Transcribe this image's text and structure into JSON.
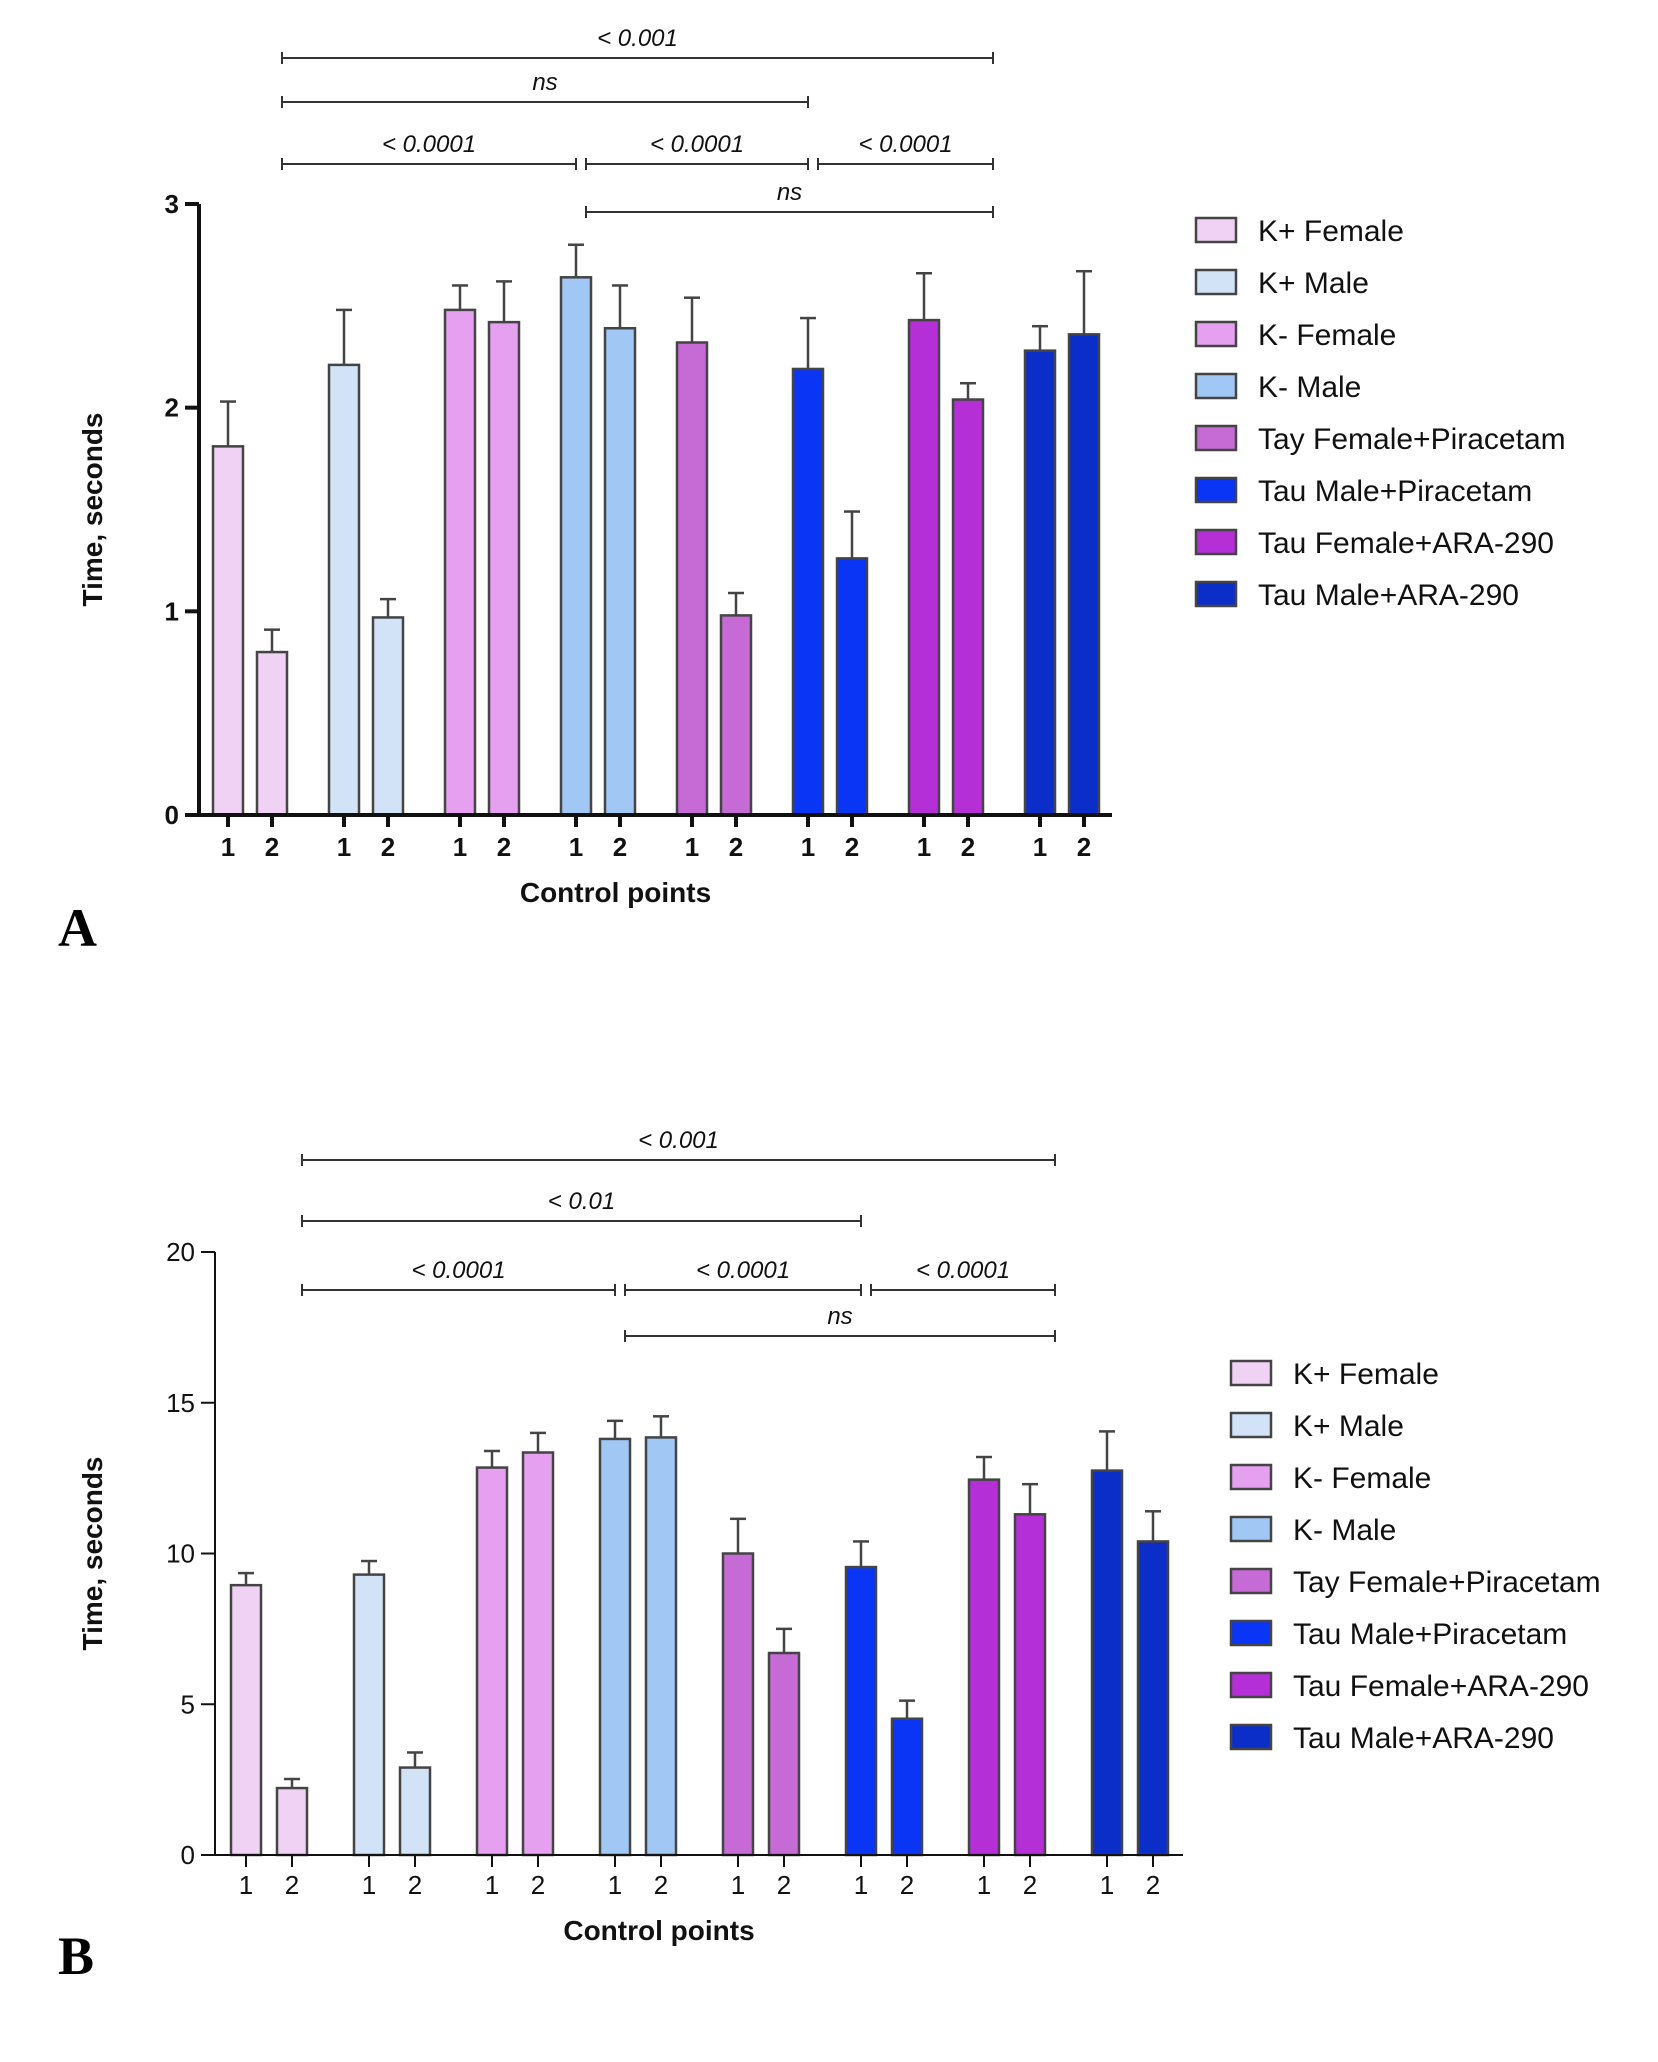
{
  "colors": {
    "K+ Female": "#f0d2f4",
    "K+ Male": "#d2e3f8",
    "K- Female": "#e5a0f0",
    "K- Male": "#a1c8f4",
    "Tay Female+Piracetam": "#c66ad6",
    "Tau Male+Piracetam": "#0a35f5",
    "Tau Female+ARA-290": "#b52fd6",
    "Tau Male+ARA-290": "#0c2ec8"
  },
  "chart_data": [
    {
      "panel": "A",
      "type": "bar",
      "xlabel": "Control points",
      "ylabel": "Time, seconds",
      "ylim": [
        0,
        3
      ],
      "yticks": [
        0,
        1,
        2,
        3
      ],
      "tick_bold": true,
      "categories": [
        "1",
        "2"
      ],
      "legend": "right",
      "series": [
        {
          "name": "K+ Female",
          "values": [
            1.81,
            0.8
          ],
          "errors": [
            0.22,
            0.11
          ]
        },
        {
          "name": "K+ Male",
          "values": [
            2.21,
            0.97
          ],
          "errors": [
            0.27,
            0.09
          ]
        },
        {
          "name": "K- Female",
          "values": [
            2.48,
            2.42
          ],
          "errors": [
            0.12,
            0.2
          ]
        },
        {
          "name": "K- Male",
          "values": [
            2.64,
            2.39
          ],
          "errors": [
            0.16,
            0.21
          ]
        },
        {
          "name": "Tay Female+Piracetam",
          "values": [
            2.32,
            0.98
          ],
          "errors": [
            0.22,
            0.11
          ]
        },
        {
          "name": "Tau Male+Piracetam",
          "values": [
            2.19,
            1.26
          ],
          "errors": [
            0.25,
            0.23
          ]
        },
        {
          "name": "Tau Female+ARA-290",
          "values": [
            2.43,
            2.04
          ],
          "errors": [
            0.23,
            0.08
          ]
        },
        {
          "name": "Tau Male+ARA-290",
          "values": [
            2.28,
            2.36
          ],
          "errors": [
            0.12,
            0.31
          ]
        }
      ],
      "comparisons": [
        {
          "label": "< 0.001",
          "from_group": 0,
          "to_group": 7,
          "level": 4
        },
        {
          "label": "ns",
          "from_group": 0,
          "to_group": 5,
          "level": 3
        },
        {
          "label": "< 0.0001",
          "from_group": 0,
          "to_group": 3,
          "level": 2
        },
        {
          "label": "< 0.0001",
          "from_group": 3,
          "to_group": 5,
          "level": 2
        },
        {
          "label": "< 0.0001",
          "from_group": 5,
          "to_group": 7,
          "level": 2
        },
        {
          "label": "ns",
          "from_group": 3,
          "to_group": 7,
          "level": 1
        }
      ]
    },
    {
      "panel": "B",
      "type": "bar",
      "xlabel": "Control points",
      "ylabel": "Time, seconds",
      "ylim": [
        0,
        20
      ],
      "yticks": [
        0,
        5,
        10,
        15,
        20
      ],
      "tick_bold": false,
      "categories": [
        "1",
        "2"
      ],
      "legend": "right",
      "series": [
        {
          "name": "K+ Female",
          "values": [
            8.95,
            2.22
          ],
          "errors": [
            0.4,
            0.3
          ]
        },
        {
          "name": "K+ Male",
          "values": [
            9.3,
            2.9
          ],
          "errors": [
            0.45,
            0.5
          ]
        },
        {
          "name": "K- Female",
          "values": [
            12.85,
            13.35
          ],
          "errors": [
            0.55,
            0.65
          ]
        },
        {
          "name": "K- Male",
          "values": [
            13.8,
            13.85
          ],
          "errors": [
            0.6,
            0.7
          ]
        },
        {
          "name": "Tay Female+Piracetam",
          "values": [
            10.0,
            6.7
          ],
          "errors": [
            1.15,
            0.8
          ]
        },
        {
          "name": "Tau Male+Piracetam",
          "values": [
            9.55,
            4.52
          ],
          "errors": [
            0.85,
            0.6
          ]
        },
        {
          "name": "Tau Female+ARA-290",
          "values": [
            12.45,
            11.3
          ],
          "errors": [
            0.75,
            1.0
          ]
        },
        {
          "name": "Tau Male+ARA-290",
          "values": [
            12.75,
            10.4
          ],
          "errors": [
            1.3,
            1.0
          ]
        }
      ],
      "comparisons": [
        {
          "label": "< 0.001",
          "from_group": 0,
          "to_group": 7,
          "level": 4
        },
        {
          "label": "< 0.01",
          "from_group": 0,
          "to_group": 5,
          "level": 3
        },
        {
          "label": "< 0.0001",
          "from_group": 0,
          "to_group": 3,
          "level": 2
        },
        {
          "label": "< 0.0001",
          "from_group": 3,
          "to_group": 5,
          "level": 2
        },
        {
          "label": "< 0.0001",
          "from_group": 5,
          "to_group": 7,
          "level": 2
        },
        {
          "label": "ns",
          "from_group": 3,
          "to_group": 7,
          "level": 1
        }
      ]
    }
  ]
}
